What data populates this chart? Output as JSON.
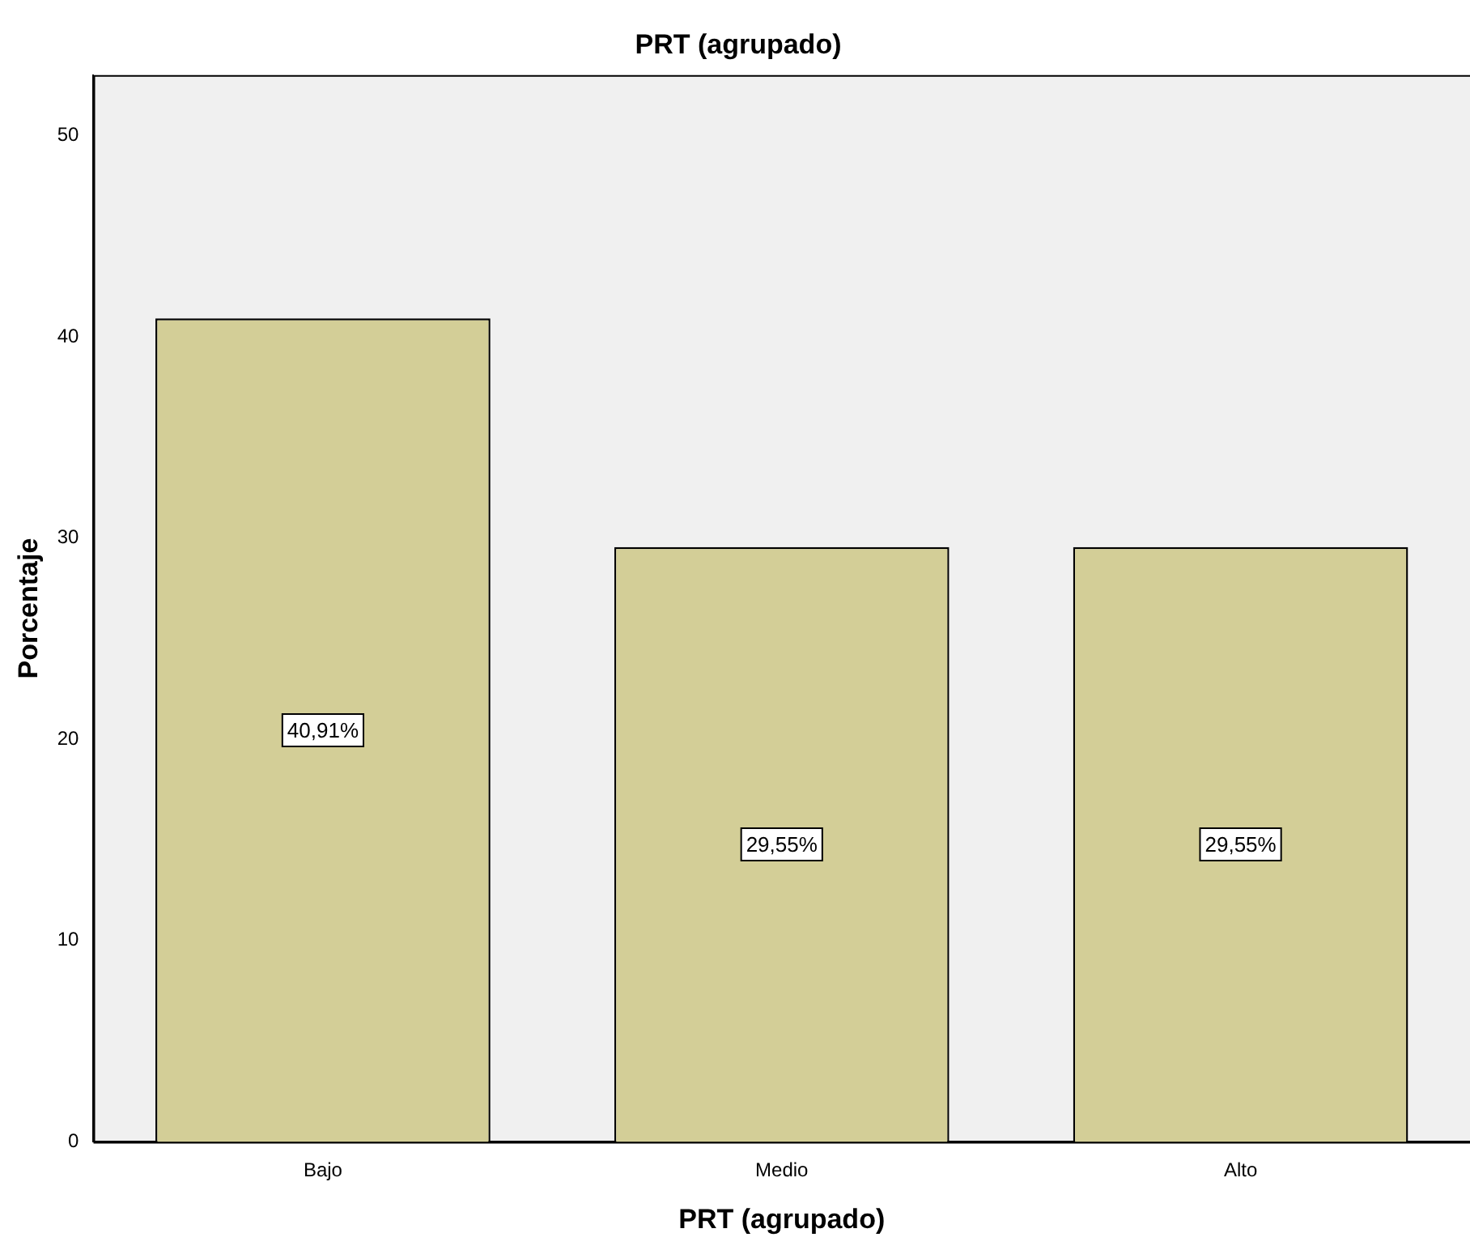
{
  "chart_data": {
    "type": "bar",
    "title": "PRT (agrupado)",
    "xlabel": "PRT (agrupado)",
    "ylabel": "Porcentaje",
    "categories": [
      "Bajo",
      "Medio",
      "Alto"
    ],
    "values": [
      40.91,
      29.55,
      29.55
    ],
    "value_labels": [
      "40,91%",
      "29,55%",
      "29,55%"
    ],
    "color": "#d3ce97",
    "ylim": [
      0,
      53
    ],
    "yticks": [
      0,
      10,
      20,
      30,
      40,
      50
    ],
    "grid": false,
    "legend": false
  }
}
